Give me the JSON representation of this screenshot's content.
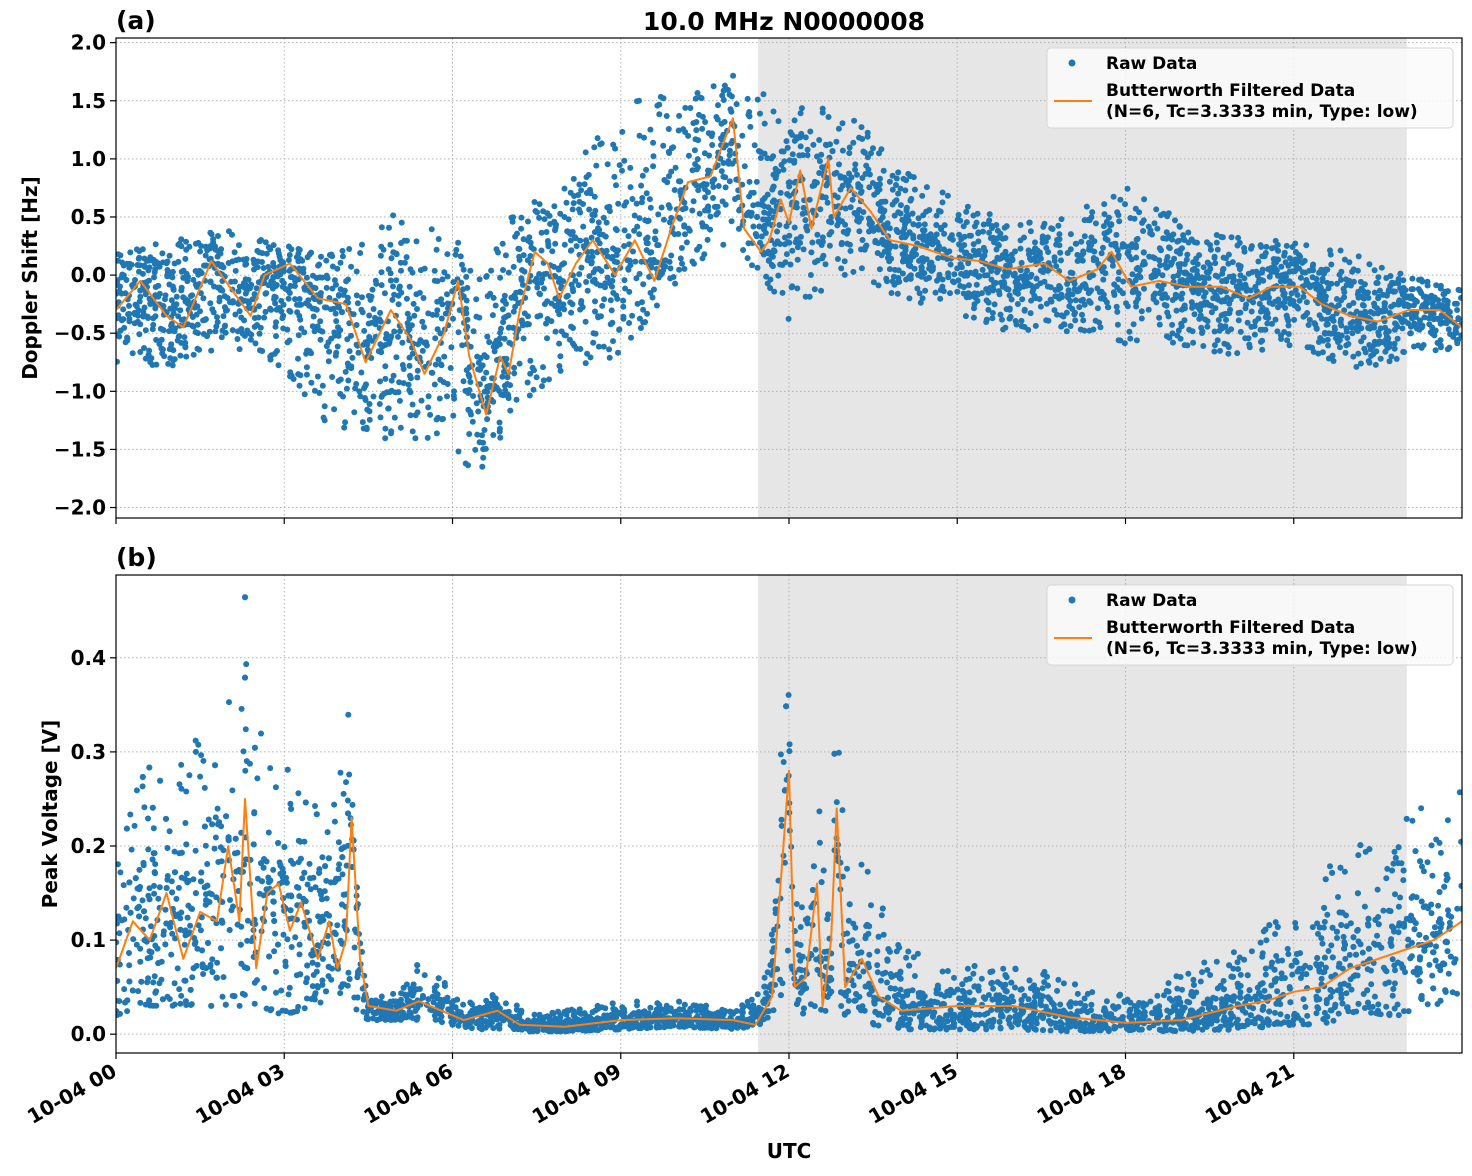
{
  "title": "10.0 MHz N0000008",
  "colors": {
    "raw": "#1f77b4",
    "filtered": "#ff7f0e",
    "shade": "#e6e6e6",
    "grid": "#b0b0b0"
  },
  "chart_data": [
    {
      "panel_label": "(a)",
      "type": "scatter+line",
      "ylabel": "Doppler Shift [Hz]",
      "xlabel": "",
      "xlim": [
        "10-04 00:00",
        "10-05 00:00"
      ],
      "ylim": [
        -2.09,
        2.04
      ],
      "yticks": [
        2.0,
        1.5,
        1.0,
        0.5,
        0.0,
        -0.5,
        -1.0,
        -1.5,
        -2.0
      ],
      "ytick_labels": [
        "2.0",
        "1.5",
        "1.0",
        "0.5",
        "0.0",
        "−0.5",
        "−1.0",
        "−1.5",
        "−2.0"
      ],
      "xtick_labels": [
        "10-04 00",
        "10-04 03",
        "10-04 06",
        "10-04 09",
        "10-04 12",
        "10-04 15",
        "10-04 18",
        "10-04 21"
      ],
      "grid": true,
      "shaded_span": [
        "11:27",
        "23:01"
      ],
      "legend": {
        "position": "top-right",
        "entries": [
          "Raw Data",
          "Butterworth Filtered Data",
          "(N=6, Tc=3.3333 min, Type: low)"
        ]
      },
      "series": [
        {
          "name": "Butterworth Filtered Data (N=6, Tc=3.3333 min, Type: low)",
          "kind": "line",
          "t": [
            "00:00",
            "00:26",
            "00:54",
            "01:12",
            "01:42",
            "02:06",
            "02:24",
            "02:39",
            "03:06",
            "03:36",
            "04:06",
            "04:27",
            "04:54",
            "05:15",
            "05:30",
            "05:51",
            "06:06",
            "06:18",
            "06:36",
            "06:51",
            "07:00",
            "07:12",
            "07:28",
            "07:42",
            "07:54",
            "08:12",
            "08:30",
            "08:54",
            "09:15",
            "09:36",
            "09:54",
            "10:12",
            "10:36",
            "11:00",
            "11:12",
            "11:30",
            "11:39",
            "11:51",
            "12:00",
            "12:12",
            "12:24",
            "12:42",
            "12:48",
            "13:06",
            "13:27",
            "13:48",
            "14:18",
            "14:54",
            "15:24",
            "15:54",
            "16:33",
            "17:00",
            "17:30",
            "17:45",
            "18:06",
            "18:36",
            "19:06",
            "19:42",
            "20:12",
            "20:36",
            "21:06",
            "21:30",
            "22:00",
            "22:30",
            "23:03",
            "23:36",
            "24:00"
          ],
          "v": [
            -0.3,
            -0.05,
            -0.35,
            -0.45,
            0.12,
            -0.15,
            -0.35,
            0.0,
            0.1,
            -0.2,
            -0.25,
            -0.75,
            -0.3,
            -0.55,
            -0.85,
            -0.5,
            -0.05,
            -0.7,
            -1.2,
            -0.7,
            -0.85,
            -0.3,
            0.2,
            0.1,
            -0.2,
            0.1,
            0.3,
            0.0,
            0.3,
            -0.05,
            0.4,
            0.8,
            0.85,
            1.35,
            0.4,
            0.2,
            0.3,
            0.65,
            0.45,
            0.9,
            0.4,
            1.0,
            0.5,
            0.75,
            0.55,
            0.3,
            0.25,
            0.15,
            0.12,
            0.05,
            0.1,
            -0.05,
            0.05,
            0.2,
            -0.1,
            -0.05,
            -0.1,
            -0.1,
            -0.2,
            -0.1,
            -0.1,
            -0.25,
            -0.35,
            -0.4,
            -0.3,
            -0.3,
            -0.45
          ]
        },
        {
          "name": "Raw Data",
          "kind": "scatter",
          "envelope": {
            "t": [
              "00:00",
              "01:00",
              "02:00",
              "03:00",
              "04:00",
              "05:00",
              "06:00",
              "06:36",
              "07:00",
              "08:00",
              "09:00",
              "10:00",
              "11:00",
              "12:00",
              "13:00",
              "14:00",
              "15:00",
              "16:00",
              "17:00",
              "18:00",
              "19:00",
              "20:00",
              "21:00",
              "22:00",
              "23:00",
              "24:00"
            ],
            "min": [
              -0.75,
              -0.8,
              -0.6,
              -0.8,
              -1.5,
              -1.4,
              -1.5,
              -1.9,
              -1.2,
              -0.8,
              -0.7,
              -0.1,
              0.3,
              -0.4,
              0.0,
              -0.2,
              -0.35,
              -0.5,
              -0.5,
              -0.6,
              -0.6,
              -0.7,
              -0.6,
              -0.8,
              -0.75,
              -0.6
            ],
            "max": [
              0.25,
              0.3,
              0.4,
              0.25,
              0.2,
              0.6,
              0.35,
              0.0,
              0.5,
              0.8,
              1.5,
              1.55,
              1.75,
              1.5,
              1.4,
              1.0,
              0.65,
              0.5,
              0.5,
              0.85,
              0.45,
              0.35,
              0.3,
              0.2,
              0.0,
              -0.1
            ]
          }
        }
      ]
    },
    {
      "panel_label": "(b)",
      "type": "scatter+line",
      "ylabel": "Peak Voltage [V]",
      "xlabel": "UTC",
      "xlim": [
        "10-04 00:00",
        "10-05 00:00"
      ],
      "ylim": [
        -0.02,
        0.488
      ],
      "yticks": [
        0.0,
        0.1,
        0.2,
        0.3,
        0.4
      ],
      "ytick_labels": [
        "0.0",
        "0.1",
        "0.2",
        "0.3",
        "0.4"
      ],
      "xtick_labels": [
        "10-04 00",
        "10-04 03",
        "10-04 06",
        "10-04 09",
        "10-04 12",
        "10-04 15",
        "10-04 18",
        "10-04 21"
      ],
      "grid": true,
      "shaded_span": [
        "11:27",
        "23:01"
      ],
      "legend": {
        "position": "top-right",
        "entries": [
          "Raw Data",
          "Butterworth Filtered Data",
          "(N=6, Tc=3.3333 min, Type: low)"
        ]
      },
      "series": [
        {
          "name": "Butterworth Filtered Data (N=6, Tc=3.3333 min, Type: low)",
          "kind": "line",
          "t": [
            "00:00",
            "00:18",
            "00:36",
            "00:54",
            "01:12",
            "01:30",
            "01:48",
            "02:00",
            "02:12",
            "02:18",
            "02:30",
            "02:42",
            "02:54",
            "03:06",
            "03:18",
            "03:36",
            "03:48",
            "03:57",
            "04:06",
            "04:12",
            "04:21",
            "04:30",
            "05:00",
            "05:24",
            "05:48",
            "06:12",
            "06:48",
            "07:12",
            "08:00",
            "09:00",
            "10:00",
            "11:00",
            "11:24",
            "11:42",
            "11:54",
            "12:00",
            "12:06",
            "12:18",
            "12:30",
            "12:36",
            "12:45",
            "12:51",
            "13:00",
            "13:18",
            "13:36",
            "14:00",
            "15:00",
            "16:00",
            "17:00",
            "18:00",
            "19:00",
            "20:00",
            "20:30",
            "21:00",
            "21:30",
            "22:00",
            "22:30",
            "23:00",
            "23:30",
            "24:00"
          ],
          "v": [
            0.07,
            0.12,
            0.1,
            0.15,
            0.08,
            0.13,
            0.12,
            0.2,
            0.12,
            0.25,
            0.07,
            0.15,
            0.16,
            0.11,
            0.14,
            0.08,
            0.12,
            0.07,
            0.1,
            0.23,
            0.08,
            0.03,
            0.025,
            0.035,
            0.025,
            0.015,
            0.025,
            0.01,
            0.008,
            0.015,
            0.017,
            0.015,
            0.01,
            0.04,
            0.2,
            0.28,
            0.05,
            0.06,
            0.16,
            0.03,
            0.1,
            0.24,
            0.05,
            0.08,
            0.04,
            0.025,
            0.03,
            0.03,
            0.018,
            0.012,
            0.015,
            0.03,
            0.035,
            0.045,
            0.05,
            0.07,
            0.08,
            0.09,
            0.1,
            0.12
          ]
        },
        {
          "name": "Raw Data",
          "kind": "scatter",
          "envelope": {
            "t": [
              "00:00",
              "00:30",
              "01:00",
              "01:30",
              "02:00",
              "02:18",
              "02:30",
              "03:00",
              "03:30",
              "04:00",
              "04:06",
              "04:20",
              "04:30",
              "05:00",
              "05:24",
              "06:00",
              "06:30",
              "06:50",
              "07:20",
              "08:00",
              "09:00",
              "10:00",
              "11:00",
              "11:30",
              "11:50",
              "12:00",
              "12:15",
              "12:30",
              "12:40",
              "12:50",
              "13:00",
              "13:30",
              "14:00",
              "14:30",
              "15:00",
              "16:00",
              "17:00",
              "18:00",
              "19:00",
              "20:00",
              "21:00",
              "21:30",
              "22:00",
              "23:00",
              "24:00"
            ],
            "min": [
              0.02,
              0.03,
              0.03,
              0.03,
              0.03,
              0.03,
              0.03,
              0.02,
              0.03,
              0.04,
              0.05,
              0.02,
              0.015,
              0.015,
              0.015,
              0.01,
              0.005,
              0.005,
              0.003,
              0.003,
              0.005,
              0.008,
              0.005,
              0.01,
              0.03,
              0.04,
              0.02,
              0.03,
              0.02,
              0.04,
              0.02,
              0.01,
              0.005,
              0.005,
              0.005,
              0.005,
              0.003,
              0.003,
              0.003,
              0.005,
              0.01,
              0.01,
              0.02,
              0.02,
              0.03
            ],
            "max": [
              0.22,
              0.3,
              0.26,
              0.35,
              0.36,
              0.465,
              0.33,
              0.3,
              0.25,
              0.3,
              0.44,
              0.12,
              0.04,
              0.045,
              0.085,
              0.05,
              0.03,
              0.05,
              0.02,
              0.025,
              0.035,
              0.035,
              0.03,
              0.05,
              0.35,
              0.365,
              0.12,
              0.32,
              0.12,
              0.44,
              0.2,
              0.17,
              0.11,
              0.07,
              0.07,
              0.09,
              0.06,
              0.04,
              0.07,
              0.09,
              0.14,
              0.18,
              0.2,
              0.23,
              0.29
            ]
          }
        }
      ]
    }
  ]
}
